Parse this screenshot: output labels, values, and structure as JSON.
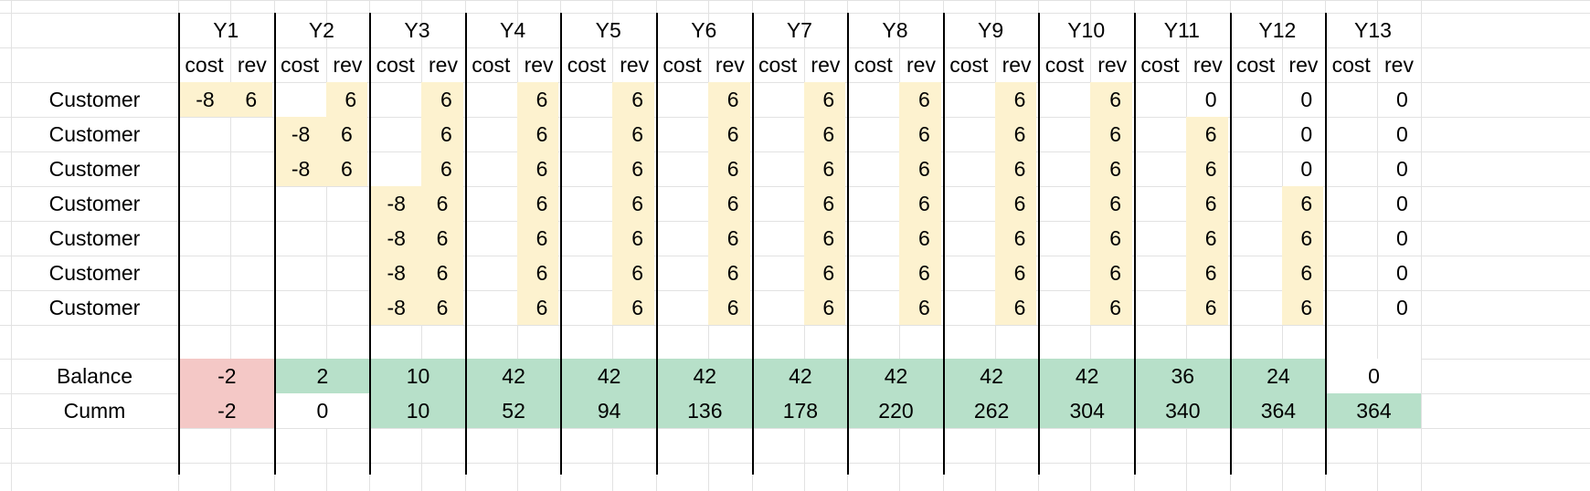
{
  "years": [
    "Y1",
    "Y2",
    "Y3",
    "Y4",
    "Y5",
    "Y6",
    "Y7",
    "Y8",
    "Y9",
    "Y10",
    "Y11",
    "Y12",
    "Y13"
  ],
  "subheaders": {
    "cost": "cost",
    "rev": "rev"
  },
  "customer_label": "Customer",
  "customers": [
    {
      "cost": [
        "-8",
        "",
        "",
        "",
        "",
        "",
        "",
        "",
        "",
        "",
        "",
        "",
        ""
      ],
      "rev": [
        "6",
        "6",
        "6",
        "6",
        "6",
        "6",
        "6",
        "6",
        "6",
        "6",
        "0",
        "0",
        "0"
      ]
    },
    {
      "cost": [
        "",
        "-8",
        "",
        "",
        "",
        "",
        "",
        "",
        "",
        "",
        "",
        "",
        ""
      ],
      "rev": [
        "",
        "6",
        "6",
        "6",
        "6",
        "6",
        "6",
        "6",
        "6",
        "6",
        "6",
        "0",
        "0"
      ]
    },
    {
      "cost": [
        "",
        "-8",
        "",
        "",
        "",
        "",
        "",
        "",
        "",
        "",
        "",
        "",
        ""
      ],
      "rev": [
        "",
        "6",
        "6",
        "6",
        "6",
        "6",
        "6",
        "6",
        "6",
        "6",
        "6",
        "0",
        "0"
      ]
    },
    {
      "cost": [
        "",
        "",
        "-8",
        "",
        "",
        "",
        "",
        "",
        "",
        "",
        "",
        "",
        ""
      ],
      "rev": [
        "",
        "",
        "6",
        "6",
        "6",
        "6",
        "6",
        "6",
        "6",
        "6",
        "6",
        "6",
        "0"
      ]
    },
    {
      "cost": [
        "",
        "",
        "-8",
        "",
        "",
        "",
        "",
        "",
        "",
        "",
        "",
        "",
        ""
      ],
      "rev": [
        "",
        "",
        "6",
        "6",
        "6",
        "6",
        "6",
        "6",
        "6",
        "6",
        "6",
        "6",
        "0"
      ]
    },
    {
      "cost": [
        "",
        "",
        "-8",
        "",
        "",
        "",
        "",
        "",
        "",
        "",
        "",
        "",
        ""
      ],
      "rev": [
        "",
        "",
        "6",
        "6",
        "6",
        "6",
        "6",
        "6",
        "6",
        "6",
        "6",
        "6",
        "0"
      ]
    },
    {
      "cost": [
        "",
        "",
        "-8",
        "",
        "",
        "",
        "",
        "",
        "",
        "",
        "",
        "",
        ""
      ],
      "rev": [
        "",
        "",
        "6",
        "6",
        "6",
        "6",
        "6",
        "6",
        "6",
        "6",
        "6",
        "6",
        "0"
      ]
    }
  ],
  "balance": {
    "label": "Balance",
    "values": [
      "-2",
      "2",
      "10",
      "42",
      "42",
      "42",
      "42",
      "42",
      "42",
      "42",
      "36",
      "24",
      "0"
    ]
  },
  "cumm": {
    "label": "Cumm",
    "values": [
      "-2",
      "0",
      "10",
      "52",
      "94",
      "136",
      "178",
      "220",
      "262",
      "304",
      "340",
      "364",
      "364"
    ]
  },
  "colors": {
    "yellow": "#fdf2cf",
    "green": "#b7e0c9",
    "red": "#f4c8c6",
    "white": "#ffffff",
    "gridline": "#e2e2e2",
    "border": "#000000"
  }
}
